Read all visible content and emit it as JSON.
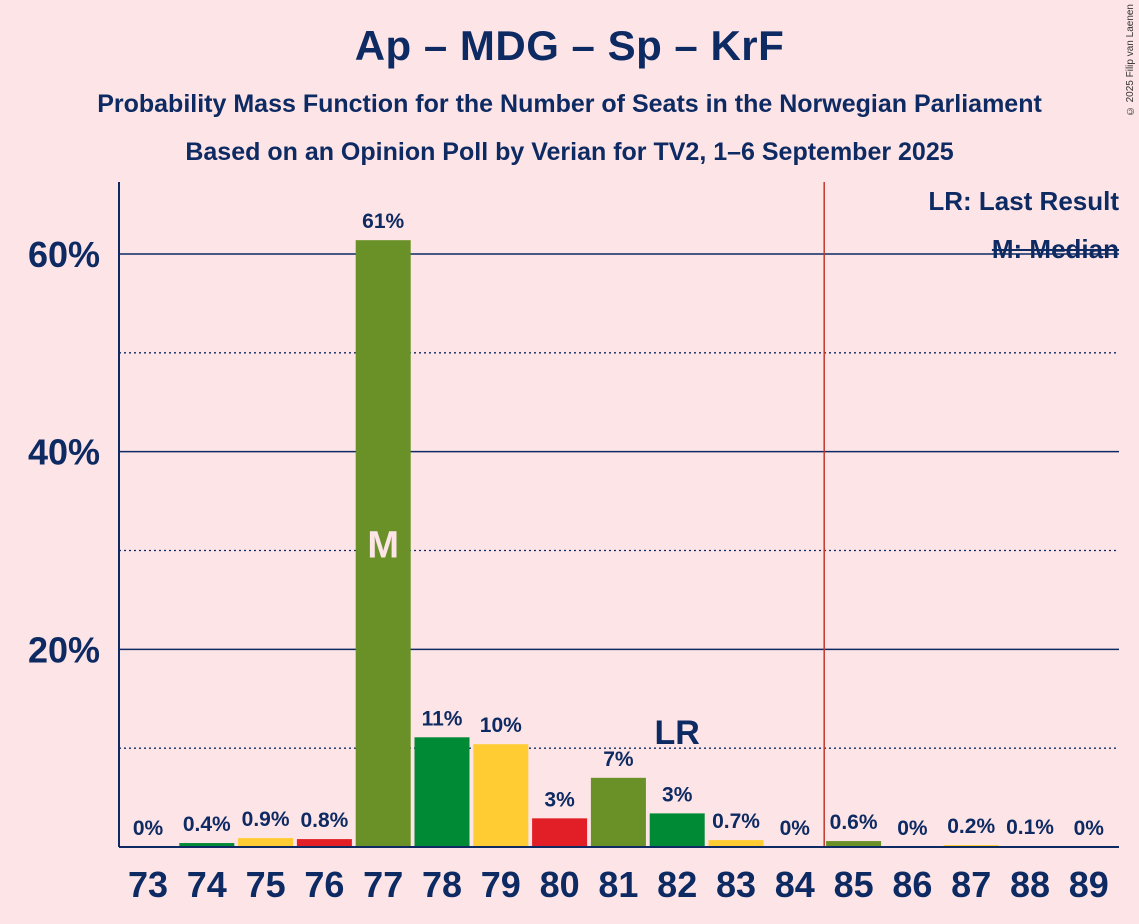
{
  "header": {
    "title": "Ap – MDG – Sp – KrF",
    "subtitle1": "Probability Mass Function for the Number of Seats in the Norwegian Parliament",
    "subtitle2": "Based on an Opinion Poll by Verian for TV2, 1–6 September 2025",
    "copyright": "© 2025 Filip van Laenen"
  },
  "legend": {
    "last_result": "LR: Last Result",
    "median": "M: Median"
  },
  "chart_data": {
    "type": "bar",
    "categories": [
      "73",
      "74",
      "75",
      "76",
      "77",
      "78",
      "79",
      "80",
      "81",
      "82",
      "83",
      "84",
      "85",
      "86",
      "87",
      "88",
      "89"
    ],
    "values": [
      0,
      0.4,
      0.9,
      0.8,
      61.4,
      11.1,
      10.4,
      2.9,
      7.0,
      3.4,
      0.7,
      0,
      0.6,
      0,
      0.2,
      0.1,
      0
    ],
    "labels": [
      "0%",
      "0.4%",
      "0.9%",
      "0.8%",
      "61%",
      "11%",
      "10%",
      "3%",
      "7%",
      "3%",
      "0.7%",
      "0%",
      "0.6%",
      "0%",
      "0.2%",
      "0.1%",
      "0%"
    ],
    "bar_colors": [
      "#0d2a63",
      "#008a36",
      "#ffcc33",
      "#e21f26",
      "#6a9127",
      "#008a36",
      "#ffcc33",
      "#e21f26",
      "#6a9127",
      "#008a36",
      "#ffcc33",
      "#e21f26",
      "#6a9127",
      "#008a36",
      "#ffcc33",
      "#e21f26",
      "#6a9127"
    ],
    "yticks": [
      20,
      40,
      60
    ],
    "ytick_labels": [
      "20%",
      "40%",
      "60%"
    ],
    "ylim": [
      0,
      67
    ],
    "minor_gridlines": [
      10,
      30,
      50
    ],
    "median_category": "77",
    "median_marker": "M",
    "last_result_category": "82",
    "last_result_marker": "LR",
    "majority_line_between": [
      "84",
      "85"
    ],
    "colors": {
      "background": "#fde4e6",
      "text": "#0d2a63",
      "majority_line": "#c0392b",
      "median_text": "#fde4e6"
    }
  }
}
